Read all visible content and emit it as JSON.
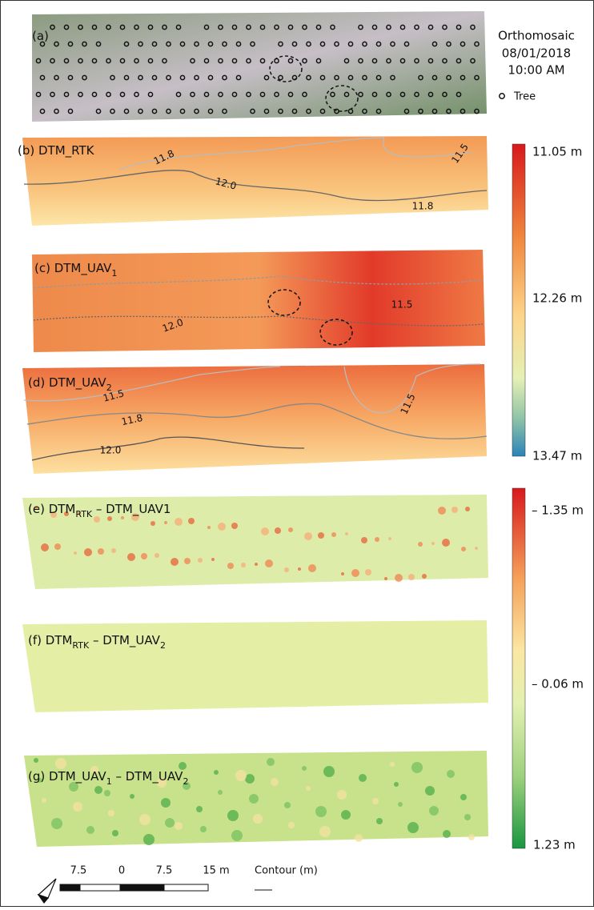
{
  "orthomosaic": {
    "title": [
      "Orthomosaic",
      "08/01/2018",
      "10:00 AM"
    ],
    "legend": "Tree"
  },
  "panels": [
    {
      "label": [
        {
          "text": "(a)"
        }
      ]
    },
    {
      "label": [
        {
          "text": "(b) DTM_RTK"
        }
      ],
      "contours": [
        "11.8",
        "11.5",
        "12.0",
        "11.8"
      ]
    },
    {
      "label": [
        {
          "text": "(c) DTM_UAV"
        },
        {
          "text": "1",
          "sub": true
        }
      ],
      "contours": [
        "11.5",
        "12.0"
      ]
    },
    {
      "label": [
        {
          "text": "(d) DTM_UAV"
        },
        {
          "text": "2",
          "sub": true
        }
      ],
      "contours": [
        "11.5",
        "11.8",
        "12.0",
        "11.5"
      ]
    },
    {
      "label": [
        {
          "text": "(e)  DTM"
        },
        {
          "text": "RTK",
          "sub": true
        },
        {
          "text": " – DTM_UAV1"
        }
      ]
    },
    {
      "label": [
        {
          "text": "(f) DTM"
        },
        {
          "text": "RTK",
          "sub": true
        },
        {
          "text": " –  DTM_UAV"
        },
        {
          "text": "2",
          "sub": true
        }
      ]
    },
    {
      "label": [
        {
          "text": "(g) DTM_UAV"
        },
        {
          "text": "1",
          "sub": true
        },
        {
          "text": " – DTM_UAV"
        },
        {
          "text": "2",
          "sub": true
        }
      ]
    }
  ],
  "elevation_colorbar": [
    "11.05 m",
    "12.26 m",
    "13.47 m"
  ],
  "difference_colorbar": [
    "– 1.35 m",
    "– 0.06 m",
    "1.23 m"
  ],
  "scale_bar": [
    "7.5",
    "0",
    "7.5",
    "15 m"
  ],
  "contour_legend": "Contour (m)"
}
